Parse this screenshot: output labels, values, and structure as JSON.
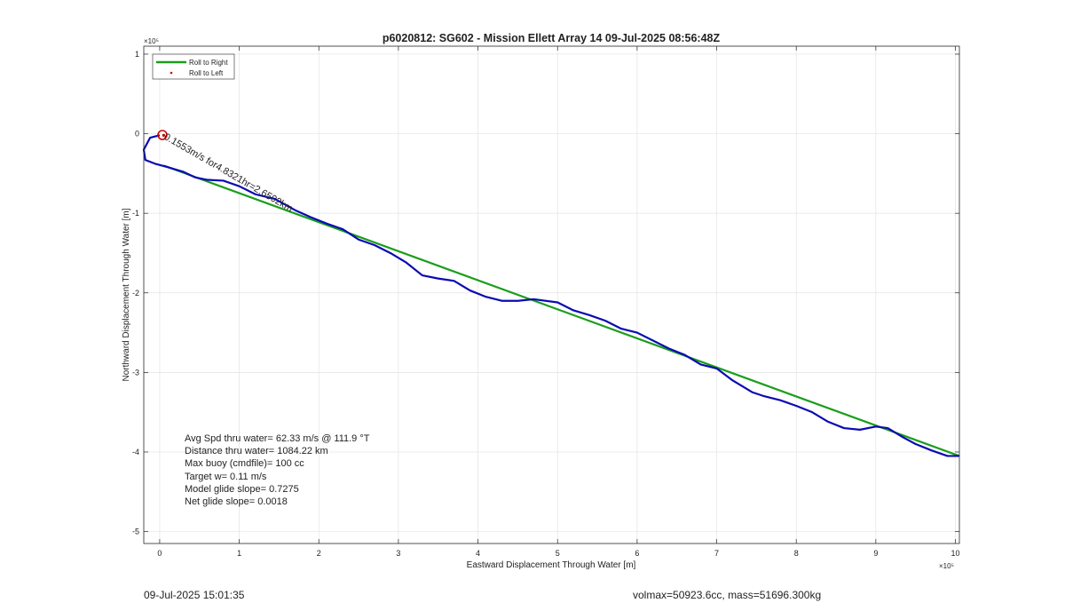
{
  "chart_data": {
    "type": "line",
    "title": "p6020812: SG602 - Mission Ellett Array 14 09-Jul-2025 08:56:48Z",
    "xlabel": "Eastward Displacement Through Water [m]",
    "ylabel": "Northward Displacement Through Water [m]",
    "x_exponent": "×10⁵",
    "y_exponent": "×10⁵",
    "xlim": [
      -0.2,
      10.05
    ],
    "ylim": [
      -5.15,
      1.1
    ],
    "xticks": [
      0,
      1,
      2,
      3,
      4,
      5,
      6,
      7,
      8,
      9,
      10
    ],
    "yticks": [
      1,
      0,
      -1,
      -2,
      -3,
      -4,
      -5
    ],
    "grid": true,
    "legend": {
      "position": "top-left",
      "entries": [
        {
          "name": "Roll to Right",
          "marker": "line",
          "color": "#1a9e1a"
        },
        {
          "name": "Roll to Left",
          "marker": "dot",
          "color": "#cc0000"
        }
      ]
    },
    "series": [
      {
        "name": "Roll to Right",
        "color": "#1a9e1a",
        "x": [
          0.05,
          10.05
        ],
        "y": [
          -0.4,
          -4.05
        ]
      },
      {
        "name": "Roll to Left",
        "color": "#cc0000",
        "x": [
          0.05
        ],
        "y": [
          -0.02
        ]
      },
      {
        "color": "#0a0ab4",
        "x": [
          0.0,
          -0.12,
          -0.2,
          -0.18,
          -0.05,
          0.1,
          0.3,
          0.45,
          0.6,
          0.8,
          1.0,
          1.2,
          1.45,
          1.7,
          1.9,
          2.1,
          2.3,
          2.5,
          2.7,
          2.9,
          3.1,
          3.3,
          3.5,
          3.7,
          3.9,
          4.1,
          4.3,
          4.5,
          4.7,
          5.0,
          5.2,
          5.4,
          5.6,
          5.8,
          6.0,
          6.2,
          6.4,
          6.6,
          6.8,
          7.0,
          7.2,
          7.45,
          7.6,
          7.8,
          8.0,
          8.2,
          8.4,
          8.6,
          8.8,
          9.0,
          9.15,
          9.35,
          9.5,
          9.7,
          9.9,
          10.05
        ],
        "y": [
          -0.02,
          -0.05,
          -0.2,
          -0.33,
          -0.38,
          -0.42,
          -0.48,
          -0.55,
          -0.58,
          -0.59,
          -0.66,
          -0.76,
          -0.82,
          -0.96,
          -1.05,
          -1.13,
          -1.2,
          -1.33,
          -1.4,
          -1.5,
          -1.62,
          -1.78,
          -1.82,
          -1.85,
          -1.97,
          -2.05,
          -2.1,
          -2.1,
          -2.08,
          -2.12,
          -2.22,
          -2.28,
          -2.35,
          -2.45,
          -2.5,
          -2.6,
          -2.7,
          -2.78,
          -2.9,
          -2.95,
          -3.1,
          -3.25,
          -3.3,
          -3.35,
          -3.42,
          -3.5,
          -3.62,
          -3.7,
          -3.72,
          -3.68,
          -3.7,
          -3.82,
          -3.9,
          -3.98,
          -4.05,
          -4.05
        ]
      }
    ],
    "annotations": [
      "Avg Spd thru water= 62.33 m/s @ 111.9 °T",
      "Distance thru water= 1084.22 km",
      "Max buoy (cmdfile)= 100 cc",
      "Target w= 0.11 m/s",
      "Model glide slope= 0.7275",
      "Net glide slope= 0.0018"
    ],
    "marker_label": "0.1553m/s for4.8321hr=2.6502km"
  },
  "footer": {
    "left": "09-Jul-2025 15:01:35",
    "right": "volmax=50923.6cc, mass=51696.300kg"
  }
}
